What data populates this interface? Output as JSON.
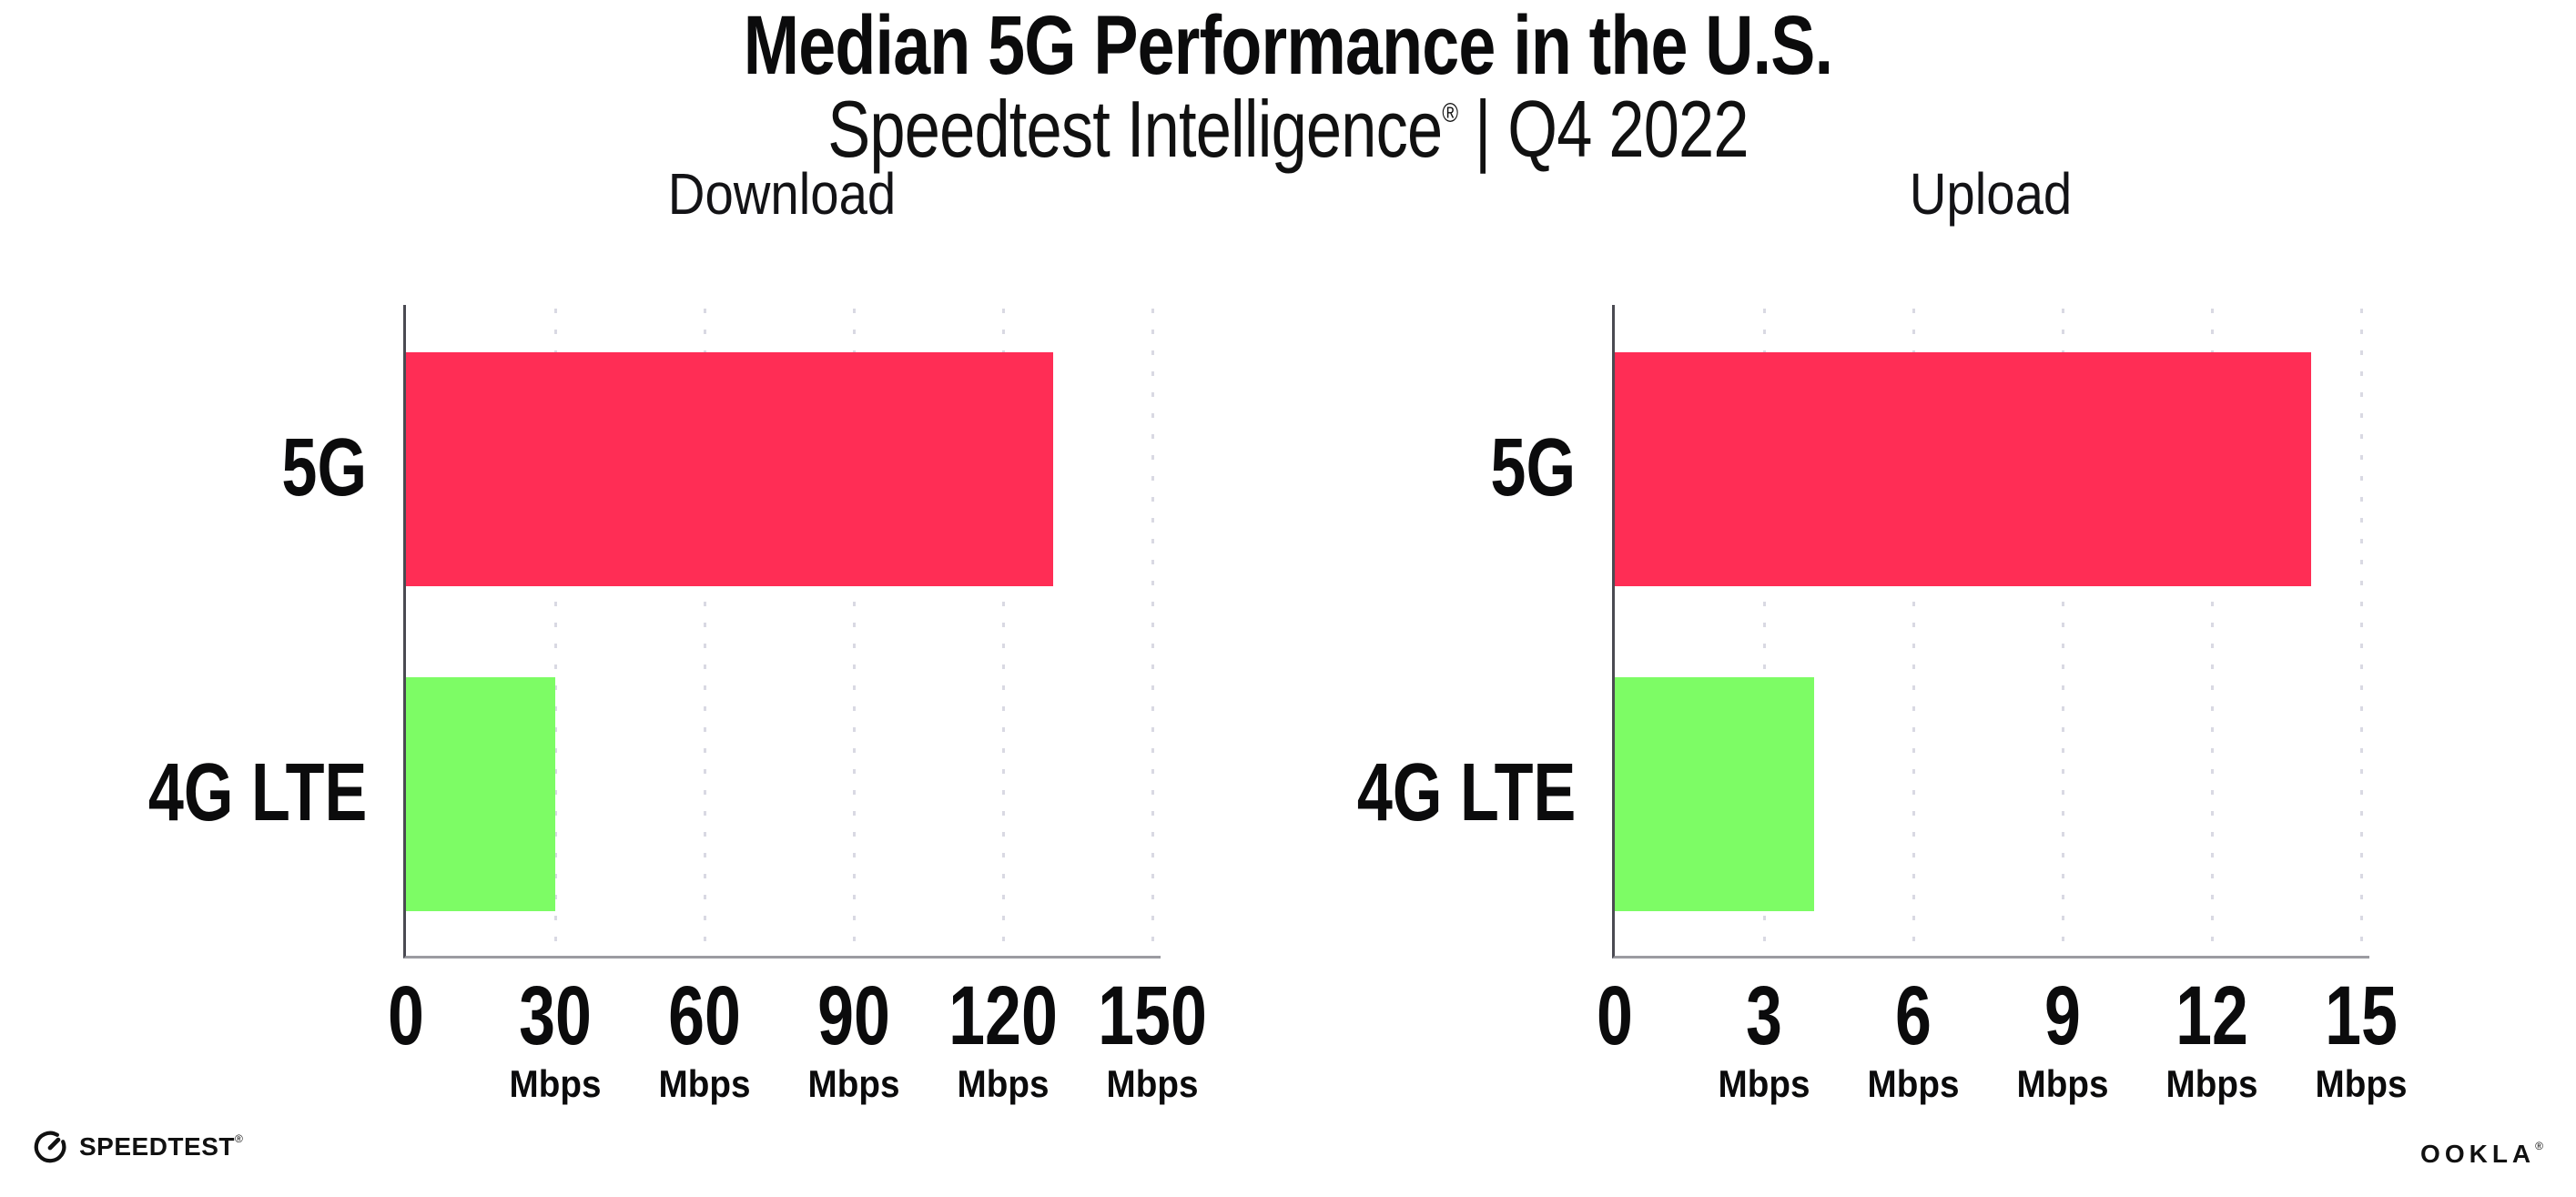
{
  "header": {
    "title": "Median 5G Performance in the U.S.",
    "subtitle_brand": "Speedtest Intelligence",
    "subtitle_registered": "®",
    "subtitle_rest": " | Q4 2022"
  },
  "colors": {
    "bar_5g": "#FF2D55",
    "bar_4g_lte": "#7DFC65",
    "x_axis_line": "#9B9BA1",
    "y_axis_line": "#4A4A52",
    "gridline_dots": "#D9D9E3",
    "text": "#0B0B0C"
  },
  "chart_data": [
    {
      "type": "bar",
      "orientation": "horizontal",
      "title": "Download",
      "categories": [
        "5G",
        "4G LTE"
      ],
      "values": [
        130,
        30
      ],
      "unit": "Mbps",
      "xlim": [
        0,
        150
      ],
      "xticks": [
        0,
        30,
        60,
        90,
        120,
        150
      ],
      "bar_colors": [
        "#FF2D55",
        "#7DFC65"
      ],
      "grid": "dotted-vertical",
      "legend": "none"
    },
    {
      "type": "bar",
      "orientation": "horizontal",
      "title": "Upload",
      "categories": [
        "5G",
        "4G LTE"
      ],
      "values": [
        14,
        4
      ],
      "unit": "Mbps",
      "xlim": [
        0,
        15
      ],
      "xticks": [
        0,
        3,
        6,
        9,
        12,
        15
      ],
      "bar_colors": [
        "#FF2D55",
        "#7DFC65"
      ],
      "grid": "dotted-vertical",
      "legend": "none"
    }
  ],
  "footer": {
    "speedtest_label": "SPEEDTEST",
    "speedtest_mark": "®",
    "ookla_label": "OOKLA",
    "ookla_mark": "®"
  }
}
